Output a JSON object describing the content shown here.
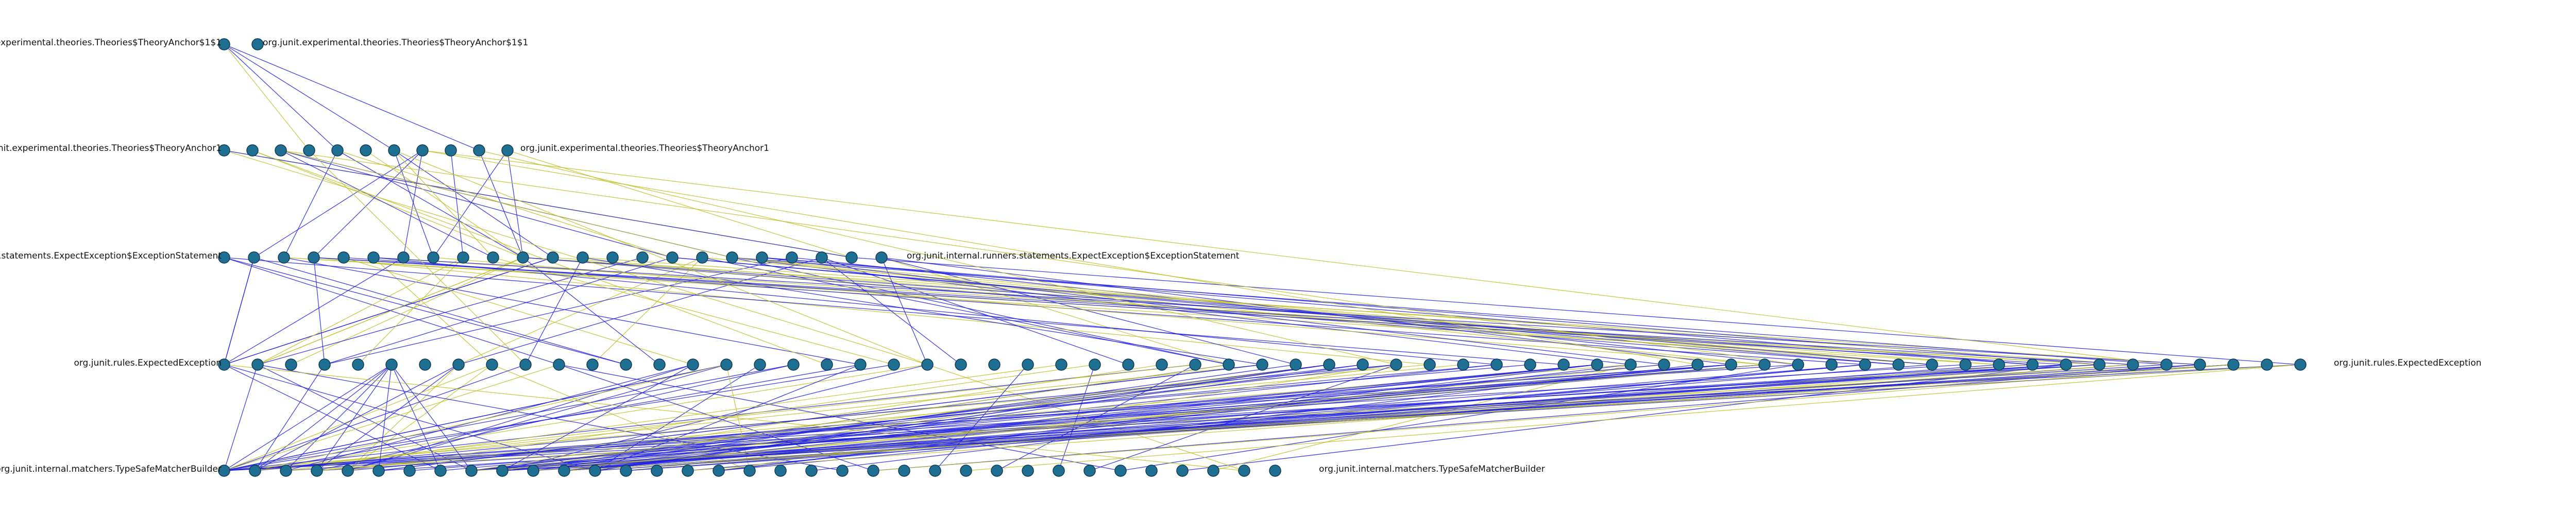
{
  "diagram": {
    "edge_colors": {
      "calls": "#1f1fe0",
      "references": "#bfbf2a"
    },
    "node_color": "#1f6f93",
    "layers": [
      {
        "row": 0,
        "nodes": [
          {
            "id": "l0n0",
            "label": "org.junit.experimental.theories.Theories$TheoryAnchor$1$1",
            "label_side": "both"
          },
          {
            "id": "l0n1",
            "label": ""
          }
        ]
      },
      {
        "row": 1,
        "nodes": [
          {
            "id": "l1n0",
            "label": "org.junit.experimental.theories.Theories$TheoryAnchor1",
            "label_side": "both"
          },
          {
            "id": "l1n1",
            "label": ""
          },
          {
            "id": "l1n2",
            "label": ""
          },
          {
            "id": "l1n3",
            "label": ""
          },
          {
            "id": "l1n4",
            "label": ""
          },
          {
            "id": "l1n5",
            "label": ""
          },
          {
            "id": "l1n6",
            "label": ""
          },
          {
            "id": "l1n7",
            "label": ""
          },
          {
            "id": "l1n8",
            "label": ""
          },
          {
            "id": "l1n9",
            "label": ""
          },
          {
            "id": "l1n10",
            "label": ""
          }
        ]
      },
      {
        "row": 2,
        "nodes": [
          {
            "id": "l2n0",
            "label": "org.junit.internal.runners.statements.ExpectException$ExceptionStatement",
            "label_side": "both"
          }
        ],
        "count": 23
      },
      {
        "row": 3,
        "nodes": [
          {
            "id": "l3n0",
            "label": "org.junit.rules.ExpectedException",
            "label_side": "both"
          }
        ],
        "count": 63
      },
      {
        "row": 4,
        "nodes": [
          {
            "id": "l4n0",
            "label": "org.junit.internal.matchers.TypeSafeMatcherBuilder",
            "label_side": "both"
          }
        ],
        "count": 35
      }
    ]
  }
}
